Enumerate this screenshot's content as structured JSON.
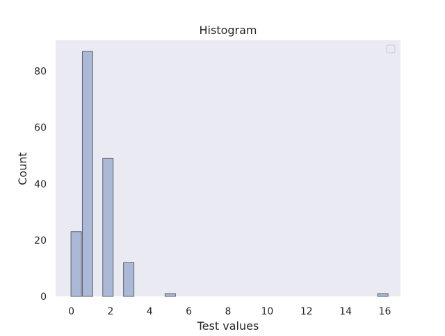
{
  "chart_data": {
    "type": "bar",
    "title": "Histogram",
    "xlabel": "Test values",
    "ylabel": "Count",
    "xlim": [
      -0.8,
      16.8
    ],
    "ylim": [
      0,
      91
    ],
    "bin_width": 0.53,
    "x": [
      0.25,
      0.83,
      1.87,
      2.93,
      5.05,
      15.9
    ],
    "values": [
      23,
      87,
      49,
      12,
      1,
      1
    ],
    "xticks": [
      0,
      2,
      4,
      6,
      8,
      10,
      12,
      14,
      16
    ],
    "yticks": [
      0,
      20,
      40,
      60,
      80
    ],
    "grid": false,
    "legend": "top-right, empty",
    "colors": {
      "plot_background": "#eaeaf2",
      "bar_fill": "#abb8d6",
      "bar_edge": "#5b6270",
      "text": "#262626"
    }
  }
}
